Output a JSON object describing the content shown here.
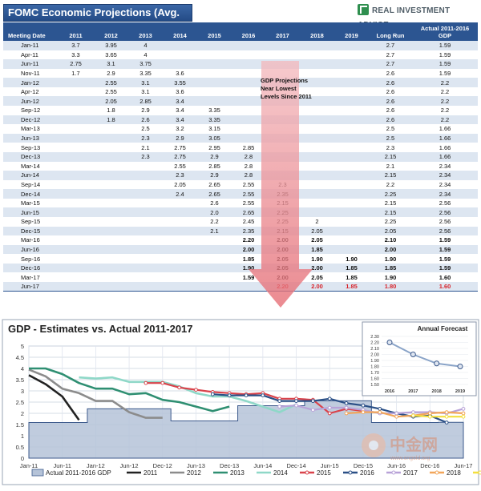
{
  "header": {
    "title": "FOMC Economic Projections (Avg. Of Range)",
    "brand": "REAL INVESTMENT ADVICE",
    "brand_icon": "growth-chart-icon"
  },
  "table": {
    "columns": [
      "Meeting Date",
      "2011",
      "2012",
      "2013",
      "2014",
      "2015",
      "2016",
      "2017",
      "2018",
      "2019",
      "Long Run",
      "Actual 2011-2016 GDP"
    ],
    "column_lines": [
      "Actual 2011-2016",
      "GDP"
    ],
    "rows": [
      [
        "Jan-11",
        "3.7",
        "3.95",
        "4",
        "",
        "",
        "",
        "",
        "",
        "",
        "2.7",
        "1.59"
      ],
      [
        "Apr-11",
        "3.3",
        "3.65",
        "4",
        "",
        "",
        "",
        "",
        "",
        "",
        "2.7",
        "1.59"
      ],
      [
        "Jun-11",
        "2.75",
        "3.1",
        "3.75",
        "",
        "",
        "",
        "",
        "",
        "",
        "2.7",
        "1.59"
      ],
      [
        "Nov-11",
        "1.7",
        "2.9",
        "3.35",
        "3.6",
        "",
        "",
        "",
        "",
        "",
        "2.6",
        "1.59"
      ],
      [
        "Jan-12",
        "",
        "2.55",
        "3.1",
        "3.55",
        "",
        "",
        "",
        "",
        "",
        "2.6",
        "2.2"
      ],
      [
        "Apr-12",
        "",
        "2.55",
        "3.1",
        "3.6",
        "",
        "",
        "",
        "",
        "",
        "2.6",
        "2.2"
      ],
      [
        "Jun-12",
        "",
        "2.05",
        "2.85",
        "3.4",
        "",
        "",
        "",
        "",
        "",
        "2.6",
        "2.2"
      ],
      [
        "Sep-12",
        "",
        "1.8",
        "2.9",
        "3.4",
        "3.35",
        "",
        "",
        "",
        "",
        "2.6",
        "2.2"
      ],
      [
        "Dec-12",
        "",
        "1.8",
        "2.6",
        "3.4",
        "3.35",
        "",
        "",
        "",
        "",
        "2.6",
        "2.2"
      ],
      [
        "Mar-13",
        "",
        "",
        "2.5",
        "3.2",
        "3.15",
        "",
        "",
        "",
        "",
        "2.5",
        "1.66"
      ],
      [
        "Jun-13",
        "",
        "",
        "2.3",
        "2.9",
        "3.05",
        "",
        "",
        "",
        "",
        "2.5",
        "1.66"
      ],
      [
        "Sep-13",
        "",
        "",
        "2.1",
        "2.75",
        "2.95",
        "2.85",
        "",
        "",
        "",
        "2.3",
        "1.66"
      ],
      [
        "Dec-13",
        "",
        "",
        "2.3",
        "2.75",
        "2.9",
        "2.8",
        "",
        "",
        "",
        "2.15",
        "1.66"
      ],
      [
        "Mar-14",
        "",
        "",
        "",
        "2.55",
        "2.85",
        "2.8",
        "",
        "",
        "",
        "2.1",
        "2.34"
      ],
      [
        "Jun-14",
        "",
        "",
        "",
        "2.3",
        "2.9",
        "2.8",
        "",
        "",
        "",
        "2.15",
        "2.34"
      ],
      [
        "Sep-14",
        "",
        "",
        "",
        "2.05",
        "2.65",
        "2.55",
        "2.3",
        "",
        "",
        "2.2",
        "2.34"
      ],
      [
        "Dec-14",
        "",
        "",
        "",
        "2.4",
        "2.65",
        "2.55",
        "2.35",
        "",
        "",
        "2.25",
        "2.34"
      ],
      [
        "Mar-15",
        "",
        "",
        "",
        "",
        "2.6",
        "2.55",
        "2.15",
        "",
        "",
        "2.15",
        "2.56"
      ],
      [
        "Jun-15",
        "",
        "",
        "",
        "",
        "2.0",
        "2.65",
        "2.25",
        "",
        "",
        "2.15",
        "2.56"
      ],
      [
        "Sep-15",
        "",
        "",
        "",
        "",
        "2.2",
        "2.45",
        "2.25",
        "2",
        "",
        "2.25",
        "2.56"
      ],
      [
        "Dec-15",
        "",
        "",
        "",
        "",
        "2.1",
        "2.35",
        "2.15",
        "2.05",
        "",
        "2.05",
        "2.56"
      ],
      [
        "Mar-16",
        "",
        "",
        "",
        "",
        "",
        "2.20",
        "2.00",
        "2.05",
        "",
        "2.10",
        "1.59"
      ],
      [
        "Jun-16",
        "",
        "",
        "",
        "",
        "",
        "2.00",
        "2.00",
        "1.85",
        "",
        "2.00",
        "1.59"
      ],
      [
        "Sep-16",
        "",
        "",
        "",
        "",
        "",
        "1.85",
        "2.05",
        "1.90",
        "1.90",
        "1.90",
        "1.59"
      ],
      [
        "Dec-16",
        "",
        "",
        "",
        "",
        "",
        "1.90",
        "2.05",
        "2.00",
        "1.85",
        "1.85",
        "1.59"
      ],
      [
        "Mar-17",
        "",
        "",
        "",
        "",
        "",
        "1.59",
        "2.00",
        "2.05",
        "1.85",
        "1.90",
        "1.60"
      ],
      [
        "Jun-17",
        "",
        "",
        "",
        "",
        "",
        "",
        "2.20",
        "2.00",
        "1.85",
        "1.80",
        "1.60"
      ]
    ],
    "annotation": "GDP Projections Near Lowest Levels Since 2011"
  },
  "chart_data": [
    {
      "type": "line",
      "title": "GDP - Estimates vs. Actual 2011-2017",
      "x": [
        "Jan-11",
        "Apr-11",
        "Jun-11",
        "Nov-11",
        "Jan-12",
        "Apr-12",
        "Jun-12",
        "Sep-12",
        "Dec-12",
        "Mar-13",
        "Jun-13",
        "Sep-13",
        "Dec-13",
        "Mar-14",
        "Jun-14",
        "Sep-14",
        "Dec-14",
        "Mar-15",
        "Jun-15",
        "Sep-15",
        "Dec-15",
        "Mar-16",
        "Jun-16",
        "Sep-16",
        "Dec-16",
        "Mar-17",
        "Jun-17"
      ],
      "x_ticks": [
        "Jan-11",
        "Jun-11",
        "Jan-12",
        "Jun-12",
        "Dec-12",
        "Jun-13",
        "Dec-13",
        "Jun-14",
        "Dec-14",
        "Jun-15",
        "Dec-15",
        "Jun-16",
        "Dec-16",
        "Jun-17"
      ],
      "ylim": [
        0,
        5
      ],
      "y_ticks": [
        0,
        0.5,
        1,
        1.5,
        2,
        2.5,
        3,
        3.5,
        4,
        4.5,
        5
      ],
      "legend_placement": "bottom",
      "actual": {
        "name": "Actual 2011-2016 GDP",
        "color": "#b5c3d8",
        "values": [
          1.59,
          1.59,
          1.59,
          1.59,
          2.2,
          2.2,
          2.2,
          2.2,
          2.2,
          1.66,
          1.66,
          1.66,
          1.66,
          2.34,
          2.34,
          2.34,
          2.34,
          2.56,
          2.56,
          2.56,
          2.56,
          1.59,
          1.59,
          1.59,
          1.59,
          1.6,
          1.6
        ]
      },
      "series": [
        {
          "name": "2011",
          "color": "#222222",
          "marker": false,
          "values": [
            3.7,
            3.3,
            2.75,
            1.7,
            null,
            null,
            null,
            null,
            null,
            null,
            null,
            null,
            null,
            null,
            null,
            null,
            null,
            null,
            null,
            null,
            null,
            null,
            null,
            null,
            null,
            null,
            null
          ]
        },
        {
          "name": "2012",
          "color": "#8c8c8c",
          "marker": false,
          "values": [
            3.95,
            3.65,
            3.1,
            2.9,
            2.55,
            2.55,
            2.05,
            1.8,
            1.8,
            null,
            null,
            null,
            null,
            null,
            null,
            null,
            null,
            null,
            null,
            null,
            null,
            null,
            null,
            null,
            null,
            null,
            null
          ]
        },
        {
          "name": "2013",
          "color": "#2f8f72",
          "marker": false,
          "values": [
            4,
            4,
            3.75,
            3.35,
            3.1,
            3.1,
            2.85,
            2.9,
            2.6,
            2.5,
            2.3,
            2.1,
            2.3,
            null,
            null,
            null,
            null,
            null,
            null,
            null,
            null,
            null,
            null,
            null,
            null,
            null,
            null
          ]
        },
        {
          "name": "2014",
          "color": "#8fd8c8",
          "marker": false,
          "values": [
            null,
            null,
            null,
            3.6,
            3.55,
            3.6,
            3.4,
            3.4,
            3.4,
            3.2,
            2.9,
            2.75,
            2.75,
            2.55,
            2.3,
            2.05,
            2.4,
            null,
            null,
            null,
            null,
            null,
            null,
            null,
            null,
            null,
            null
          ]
        },
        {
          "name": "2015",
          "color": "#d9434b",
          "marker": true,
          "values": [
            null,
            null,
            null,
            null,
            null,
            null,
            null,
            3.35,
            3.35,
            3.15,
            3.05,
            2.95,
            2.9,
            2.85,
            2.9,
            2.65,
            2.65,
            2.6,
            2.0,
            2.2,
            2.1,
            null,
            null,
            null,
            null,
            null,
            null
          ]
        },
        {
          "name": "2016",
          "color": "#2a4f86",
          "marker": true,
          "values": [
            null,
            null,
            null,
            null,
            null,
            null,
            null,
            null,
            null,
            null,
            null,
            2.85,
            2.8,
            2.8,
            2.8,
            2.55,
            2.55,
            2.55,
            2.65,
            2.45,
            2.35,
            2.2,
            2.0,
            1.85,
            1.9,
            1.59,
            null
          ]
        },
        {
          "name": "2017",
          "color": "#b8a2d8",
          "marker": true,
          "values": [
            null,
            null,
            null,
            null,
            null,
            null,
            null,
            null,
            null,
            null,
            null,
            null,
            null,
            null,
            null,
            2.3,
            2.35,
            2.15,
            2.25,
            2.25,
            2.15,
            2.0,
            2.0,
            2.05,
            2.05,
            2.0,
            2.2
          ]
        },
        {
          "name": "2018",
          "color": "#f2a65a",
          "marker": true,
          "values": [
            null,
            null,
            null,
            null,
            null,
            null,
            null,
            null,
            null,
            null,
            null,
            null,
            null,
            null,
            null,
            null,
            null,
            null,
            null,
            2,
            2.05,
            2.05,
            1.85,
            1.9,
            2.0,
            2.05,
            2.0
          ]
        },
        {
          "name": "2019",
          "color": "#f3df3e",
          "marker": true,
          "values": [
            null,
            null,
            null,
            null,
            null,
            null,
            null,
            null,
            null,
            null,
            null,
            null,
            null,
            null,
            null,
            null,
            null,
            null,
            null,
            null,
            null,
            null,
            null,
            1.9,
            1.85,
            1.85,
            1.85
          ]
        }
      ]
    },
    {
      "type": "line",
      "title": "Annual Forecast",
      "x": [
        "2016",
        "2017",
        "2018",
        "2019"
      ],
      "values": [
        2.2,
        2.0,
        1.85,
        1.8
      ],
      "ylim": [
        1.5,
        2.3
      ],
      "y_ticks": [
        "1.50",
        "1.60",
        "1.70",
        "1.80",
        "1.90",
        "2.00",
        "2.10",
        "2.20",
        "2.30"
      ],
      "color": "#8aa4c8"
    }
  ],
  "watermark": {
    "text": "中金网",
    "subtext": "www.cngold.org"
  }
}
